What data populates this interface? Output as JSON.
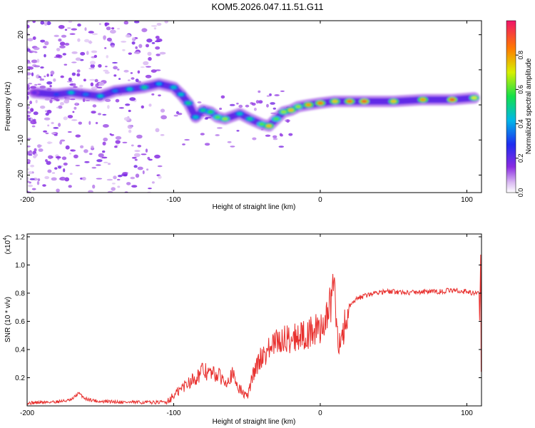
{
  "title": "KOM5.2026.047.11.51.G11",
  "colors": {
    "line": "#e8302e",
    "axis": "#000000"
  },
  "chart_data": [
    {
      "type": "heatmap",
      "xlabel": "Height of straight line (km)",
      "ylabel": "Frequency (Hz)",
      "xlim": [
        -200,
        110
      ],
      "ylim": [
        -25,
        24
      ],
      "x_ticks": [
        -200,
        -100,
        0,
        100
      ],
      "y_ticks": [
        -20,
        -10,
        0,
        10,
        20
      ],
      "colorbar": {
        "label": "Normalized spectral amplitude",
        "range": [
          0,
          1
        ],
        "ticks": [
          0.0,
          0.2,
          0.4,
          0.6,
          0.8
        ],
        "tick_labels": [
          "0.0",
          "0.2",
          "0.4",
          "0.6",
          "0.8"
        ],
        "colormap": "rainbow (white-purple-blue-cyan-green-yellow-red)"
      },
      "ridge": [
        {
          "x": -195,
          "y": 3.5,
          "a": 0.2
        },
        {
          "x": -180,
          "y": 3.0,
          "a": 0.3
        },
        {
          "x": -170,
          "y": 3.5,
          "a": 0.45
        },
        {
          "x": -160,
          "y": 3.0,
          "a": 0.35
        },
        {
          "x": -150,
          "y": 2.5,
          "a": 0.45
        },
        {
          "x": -140,
          "y": 4.0,
          "a": 0.35
        },
        {
          "x": -130,
          "y": 4.5,
          "a": 0.45
        },
        {
          "x": -120,
          "y": 5.0,
          "a": 0.5
        },
        {
          "x": -110,
          "y": 6.0,
          "a": 0.4
        },
        {
          "x": -100,
          "y": 5.0,
          "a": 0.45
        },
        {
          "x": -95,
          "y": 3.0,
          "a": 0.45
        },
        {
          "x": -90,
          "y": 0.5,
          "a": 0.5
        },
        {
          "x": -85,
          "y": -3.5,
          "a": 0.45
        },
        {
          "x": -80,
          "y": -1.5,
          "a": 0.5
        },
        {
          "x": -75,
          "y": -2.0,
          "a": 0.55
        },
        {
          "x": -70,
          "y": -3.5,
          "a": 0.6
        },
        {
          "x": -65,
          "y": -4.0,
          "a": 0.65
        },
        {
          "x": -55,
          "y": -2.5,
          "a": 0.45
        },
        {
          "x": -48,
          "y": -4.0,
          "a": 0.5
        },
        {
          "x": -40,
          "y": -5.5,
          "a": 0.6
        },
        {
          "x": -35,
          "y": -6.0,
          "a": 0.75
        },
        {
          "x": -30,
          "y": -4.0,
          "a": 0.6
        },
        {
          "x": -25,
          "y": -2.0,
          "a": 0.65
        },
        {
          "x": -20,
          "y": -1.5,
          "a": 0.75
        },
        {
          "x": -15,
          "y": -0.5,
          "a": 0.65
        },
        {
          "x": -8,
          "y": 0.0,
          "a": 0.8
        },
        {
          "x": 0,
          "y": 0.5,
          "a": 0.85
        },
        {
          "x": 10,
          "y": 1.0,
          "a": 0.75
        },
        {
          "x": 20,
          "y": 1.0,
          "a": 0.85
        },
        {
          "x": 30,
          "y": 1.0,
          "a": 0.9
        },
        {
          "x": 50,
          "y": 1.0,
          "a": 0.75
        },
        {
          "x": 70,
          "y": 1.5,
          "a": 0.8
        },
        {
          "x": 90,
          "y": 1.5,
          "a": 0.9
        },
        {
          "x": 105,
          "y": 2.0,
          "a": 0.7
        }
      ]
    },
    {
      "type": "line",
      "xlabel": "Height of straight line (km)",
      "ylabel": "SNR (10 * v/v)",
      "y_multiplier": "(x10",
      "y_multiplier_exp": "4",
      "xlim": [
        -200,
        110
      ],
      "ylim": [
        0,
        12200
      ],
      "x_ticks": [
        -200,
        -100,
        0,
        100
      ],
      "y_ticks": [
        2000,
        4000,
        6000,
        8000,
        10000,
        12000
      ],
      "y_tick_labels": [
        "0.2",
        "0.4",
        "0.6",
        "0.8",
        "1.0",
        "1.2"
      ],
      "series": [
        {
          "values_x": [
            -200,
            -180,
            -170,
            -165,
            -160,
            -150,
            -140,
            -130,
            -120,
            -110,
            -105,
            -100,
            -95,
            -90,
            -85,
            -80,
            -75,
            -70,
            -65,
            -60,
            -55,
            -50,
            -45,
            -40,
            -35,
            -30,
            -25,
            -20,
            -15,
            -10,
            -5,
            0,
            5,
            8,
            10,
            12,
            15,
            20,
            25,
            30,
            40,
            50,
            60,
            70,
            80,
            90,
            100,
            105,
            108,
            110
          ],
          "values_y": [
            200,
            300,
            400,
            900,
            500,
            300,
            300,
            250,
            250,
            250,
            300,
            700,
            1200,
            1700,
            2000,
            2500,
            2300,
            2200,
            1800,
            2200,
            1200,
            600,
            2500,
            3500,
            4000,
            4500,
            4700,
            4800,
            5000,
            5000,
            5300,
            5500,
            6500,
            7500,
            6800,
            4500,
            5000,
            7000,
            7600,
            7800,
            8100,
            8100,
            8050,
            8100,
            8100,
            8200,
            8100,
            8000,
            8000,
            8000
          ]
        }
      ]
    }
  ]
}
